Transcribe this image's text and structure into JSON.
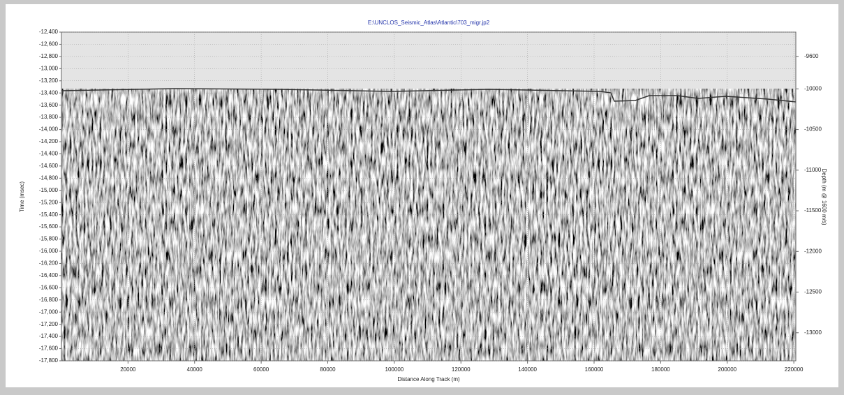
{
  "chart_data": {
    "type": "seismic",
    "title": "E:\\UNCLOS_Seismic_Atlas\\Atlantic\\703_migr.jp2",
    "x_label": "Distance Along Track (m)",
    "y_label": "Time (msec)",
    "y2_label": "Depth (m @ 1600 m/s)",
    "xlim": [
      0,
      220600
    ],
    "xticks": [
      20000,
      40000,
      60000,
      80000,
      100000,
      120000,
      140000,
      160000,
      180000,
      200000,
      220000
    ],
    "ylim": [
      -17800,
      -12400
    ],
    "yticks": [
      {
        "value": -12400,
        "label": "-12,400"
      },
      {
        "value": -12600,
        "label": "-12,600"
      },
      {
        "value": -12800,
        "label": "-12,800"
      },
      {
        "value": -13000,
        "label": "-13,000"
      },
      {
        "value": -13200,
        "label": "-13,200"
      },
      {
        "value": -13400,
        "label": "-13,400"
      },
      {
        "value": -13600,
        "label": "-13,600"
      },
      {
        "value": -13800,
        "label": "-13,800"
      },
      {
        "value": -14000,
        "label": "-14,000"
      },
      {
        "value": -14200,
        "label": "-14,200"
      },
      {
        "value": -14400,
        "label": "-14,400"
      },
      {
        "value": -14600,
        "label": "-14,600"
      },
      {
        "value": -14800,
        "label": "-14,800"
      },
      {
        "value": -15000,
        "label": "-15,000"
      },
      {
        "value": -15200,
        "label": "-15,200"
      },
      {
        "value": -15400,
        "label": "-15,400"
      },
      {
        "value": -15600,
        "label": "-15,600"
      },
      {
        "value": -15800,
        "label": "-15,800"
      },
      {
        "value": -16000,
        "label": "-16,000"
      },
      {
        "value": -16200,
        "label": "-16,200"
      },
      {
        "value": -16400,
        "label": "-16,400"
      },
      {
        "value": -16600,
        "label": "-16,600"
      },
      {
        "value": -16800,
        "label": "-16,800"
      },
      {
        "value": -17000,
        "label": "-17,000"
      },
      {
        "value": -17200,
        "label": "-17,200"
      },
      {
        "value": -17400,
        "label": "-17,400"
      },
      {
        "value": -17600,
        "label": "-17,600"
      },
      {
        "value": -17800,
        "label": "-17,800"
      }
    ],
    "y2lim": [
      -13345,
      -9302
    ],
    "y2ticks": [
      -9600,
      -10000,
      -10500,
      -11000,
      -11500,
      -12000,
      -12500,
      -13000
    ],
    "grid": true,
    "title_color": "#2233aa"
  }
}
